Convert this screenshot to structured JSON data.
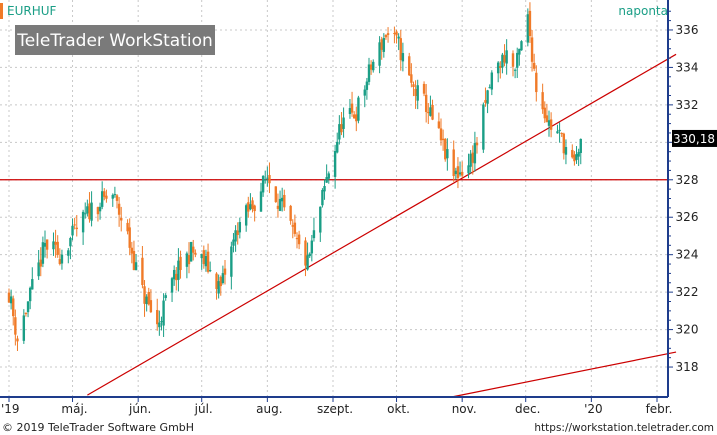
{
  "header": {
    "symbol": "EURHUF",
    "period": "naponta",
    "watermark": "TeleTrader WorkStation"
  },
  "footer": {
    "copyright": "© 2019 TeleTrader Software GmbH",
    "url": "https://workstation.teletrader.com"
  },
  "colors": {
    "up": "#1a9e86",
    "down": "#f07a28",
    "trendline": "#cc0000",
    "axis": "#1e3c8c",
    "grid": "#c8c8c8",
    "accent": "#f07a28"
  },
  "chart_data": {
    "type": "candlestick",
    "title": "EURHUF",
    "ylim": [
      316.4,
      337.6
    ],
    "y_ticks": [
      318,
      320,
      322,
      324,
      326,
      328,
      330,
      332,
      334,
      336
    ],
    "x_ticks": [
      "'19",
      "máj.",
      "jún.",
      "júl.",
      "aug.",
      "szept.",
      "okt.",
      "nov.",
      "dec.",
      "'20",
      "febr."
    ],
    "last_price": "330,18",
    "close_path": [
      {
        "date": "2019-04-01",
        "close": 322.0
      },
      {
        "date": "2019-04-05",
        "close": 319.5
      },
      {
        "date": "2019-04-18",
        "close": 324.5
      },
      {
        "date": "2019-04-25",
        "close": 324.0
      },
      {
        "date": "2019-05-10",
        "close": 326.5
      },
      {
        "date": "2019-05-20",
        "close": 327.2
      },
      {
        "date": "2019-05-27",
        "close": 325.0
      },
      {
        "date": "2019-06-03",
        "close": 322.0
      },
      {
        "date": "2019-06-10",
        "close": 320.2
      },
      {
        "date": "2019-06-18",
        "close": 322.8
      },
      {
        "date": "2019-06-26",
        "close": 324.2
      },
      {
        "date": "2019-07-03",
        "close": 323.5
      },
      {
        "date": "2019-07-10",
        "close": 322.2
      },
      {
        "date": "2019-07-18",
        "close": 325.5
      },
      {
        "date": "2019-07-26",
        "close": 326.8
      },
      {
        "date": "2019-08-01",
        "close": 328.2
      },
      {
        "date": "2019-08-08",
        "close": 326.5
      },
      {
        "date": "2019-08-15",
        "close": 324.5
      },
      {
        "date": "2019-08-20",
        "close": 323.5
      },
      {
        "date": "2019-08-29",
        "close": 328.0
      },
      {
        "date": "2019-09-05",
        "close": 331.0
      },
      {
        "date": "2019-09-12",
        "close": 331.6
      },
      {
        "date": "2019-09-19",
        "close": 334.0
      },
      {
        "date": "2019-09-26",
        "close": 335.8
      },
      {
        "date": "2019-10-02",
        "close": 335.2
      },
      {
        "date": "2019-10-08",
        "close": 333.0
      },
      {
        "date": "2019-10-15",
        "close": 332.0
      },
      {
        "date": "2019-10-22",
        "close": 330.0
      },
      {
        "date": "2019-10-28",
        "close": 328.2
      },
      {
        "date": "2019-11-04",
        "close": 328.8
      },
      {
        "date": "2019-11-08",
        "close": 330.0
      },
      {
        "date": "2019-11-15",
        "close": 333.5
      },
      {
        "date": "2019-11-22",
        "close": 334.8
      },
      {
        "date": "2019-11-26",
        "close": 333.8
      },
      {
        "date": "2019-12-02",
        "close": 336.6
      },
      {
        "date": "2019-12-06",
        "close": 333.0
      },
      {
        "date": "2019-12-12",
        "close": 331.0
      },
      {
        "date": "2019-12-18",
        "close": 330.2
      },
      {
        "date": "2019-12-24",
        "close": 328.6
      },
      {
        "date": "2019-12-27",
        "close": 330.18
      }
    ],
    "lines": [
      {
        "type": "horizontal",
        "y": 328.0
      },
      {
        "type": "trend",
        "from": {
          "date": "2019-05-08",
          "y": 316.5
        },
        "to": {
          "date": "2020-02-10",
          "y": 334.7
        }
      },
      {
        "type": "trend",
        "from": {
          "date": "2019-10-27",
          "y": 316.4
        },
        "to": {
          "date": "2020-02-10",
          "y": 318.8
        }
      }
    ]
  }
}
